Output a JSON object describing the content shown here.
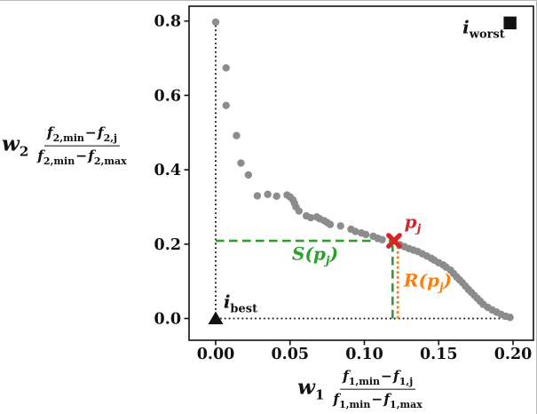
{
  "figure": {
    "background": "#ffffff",
    "accent_colors": {
      "gray_points": "#8c8c8c",
      "green": "#2ca02c",
      "orange": "#ff7f0e",
      "red": "#d62728",
      "black": "#111111"
    }
  },
  "chart_data": {
    "type": "scatter",
    "title": "",
    "legend": null,
    "grid": false,
    "xlim": [
      -0.018,
      0.214
    ],
    "ylim": [
      -0.058,
      0.84
    ],
    "x_ticks": {
      "values": [
        0,
        0.05,
        0.1,
        0.15,
        0.2
      ],
      "labels": [
        "0.00",
        "0.05",
        "0.10",
        "0.15",
        "0.20"
      ]
    },
    "y_ticks": {
      "values": [
        0,
        0.2,
        0.4,
        0.6,
        0.8
      ],
      "labels": [
        "0.0",
        "0.2",
        "0.4",
        "0.6",
        "0.8"
      ]
    },
    "xlabel": {
      "var": [
        "w",
        "1"
      ],
      "num": [
        [
          "f",
          "1,min"
        ],
        [
          "−",
          ""
        ],
        [
          "f",
          "1,j"
        ]
      ],
      "den": [
        [
          "f",
          "1,min"
        ],
        [
          "−",
          ""
        ],
        [
          "f",
          "1,max"
        ]
      ]
    },
    "ylabel": {
      "var": [
        "w",
        "2"
      ],
      "num": [
        [
          "f",
          "2,min"
        ],
        [
          "−",
          ""
        ],
        [
          "f",
          "2,j"
        ]
      ],
      "den": [
        [
          "f",
          "2,min"
        ],
        [
          "−",
          ""
        ],
        [
          "f",
          "2,max"
        ]
      ]
    },
    "series": [
      {
        "name": "pareto-front-points",
        "marker": "circle",
        "color": "#8c8c8c",
        "points": [
          [
            0.0,
            0.797
          ],
          [
            0.007,
            0.674
          ],
          [
            0.007,
            0.573
          ],
          [
            0.014,
            0.492
          ],
          [
            0.017,
            0.418
          ],
          [
            0.022,
            0.386
          ],
          [
            0.028,
            0.33
          ],
          [
            0.035,
            0.334
          ],
          [
            0.041,
            0.329
          ],
          [
            0.048,
            0.332
          ],
          [
            0.05,
            0.327
          ],
          [
            0.052,
            0.319
          ],
          [
            0.053,
            0.31
          ],
          [
            0.054,
            0.3
          ],
          [
            0.056,
            0.289
          ],
          [
            0.061,
            0.276
          ],
          [
            0.064,
            0.271
          ],
          [
            0.068,
            0.273
          ],
          [
            0.07,
            0.268
          ],
          [
            0.073,
            0.263
          ],
          [
            0.075,
            0.258
          ],
          [
            0.077,
            0.253
          ],
          [
            0.084,
            0.249
          ],
          [
            0.091,
            0.24
          ],
          [
            0.094,
            0.234
          ],
          [
            0.098,
            0.23
          ],
          [
            0.101,
            0.226
          ],
          [
            0.106,
            0.221
          ],
          [
            0.109,
            0.216
          ],
          [
            0.112,
            0.212
          ],
          [
            0.124,
            0.198
          ],
          [
            0.127,
            0.193
          ],
          [
            0.13,
            0.188
          ],
          [
            0.133,
            0.184
          ],
          [
            0.136,
            0.18
          ],
          [
            0.139,
            0.174
          ],
          [
            0.142,
            0.168
          ],
          [
            0.145,
            0.162
          ],
          [
            0.147,
            0.157
          ],
          [
            0.15,
            0.15
          ],
          [
            0.153,
            0.144
          ],
          [
            0.155,
            0.138
          ],
          [
            0.158,
            0.13
          ],
          [
            0.16,
            0.121
          ],
          [
            0.162,
            0.112
          ],
          [
            0.164,
            0.104
          ],
          [
            0.166,
            0.096
          ],
          [
            0.168,
            0.087
          ],
          [
            0.17,
            0.078
          ],
          [
            0.172,
            0.07
          ],
          [
            0.174,
            0.062
          ],
          [
            0.176,
            0.054
          ],
          [
            0.178,
            0.046
          ],
          [
            0.18,
            0.038
          ],
          [
            0.183,
            0.03
          ],
          [
            0.186,
            0.023
          ],
          [
            0.189,
            0.017
          ],
          [
            0.192,
            0.011
          ],
          [
            0.195,
            0.006
          ],
          [
            0.198,
            0.003
          ]
        ]
      }
    ],
    "markers": [
      {
        "name": "i-best-marker",
        "shape": "triangle-up",
        "color": "#111111",
        "point": [
          0.0,
          0.0
        ]
      },
      {
        "name": "i-worst-marker",
        "shape": "square",
        "color": "#111111",
        "point": [
          0.198,
          0.795
        ]
      },
      {
        "name": "p-j-marker",
        "shape": "x-bold",
        "color": "#d62728",
        "point": [
          0.12,
          0.209
        ]
      }
    ],
    "lines": [
      {
        "name": "origin-vline",
        "color": "#111111",
        "dash": "dot",
        "from": [
          0.0,
          0.0
        ],
        "to": [
          0.0,
          0.797
        ]
      },
      {
        "name": "baseline-hline",
        "color": "#111111",
        "dash": "dot",
        "from": [
          0.0,
          0.0
        ],
        "to": [
          0.2,
          0.0
        ]
      },
      {
        "name": "s-hline",
        "color": "#2ca02c",
        "dash": "dash",
        "from": [
          0.0,
          0.209
        ],
        "to": [
          0.119,
          0.209
        ]
      },
      {
        "name": "s-vline",
        "color": "#2ca02c",
        "dash": "dash",
        "from": [
          0.119,
          0.0
        ],
        "to": [
          0.119,
          0.196
        ]
      },
      {
        "name": "r-vline",
        "color": "#ff7f0e",
        "dash": "dense-dot",
        "from": [
          0.1225,
          0.0
        ],
        "to": [
          0.1225,
          0.193
        ]
      }
    ],
    "annotations": [
      {
        "name": "p-j-label",
        "pre": "",
        "main": "p",
        "sub": "j",
        "post": "",
        "color": "#d62728",
        "anchor": [
          0.1325,
          0.2545
        ]
      },
      {
        "name": "s-pj-label",
        "pre": "S(",
        "main": "p",
        "sub": "j",
        "post": ")",
        "color": "#2ca02c",
        "anchor": [
          0.0669,
          0.168
        ]
      },
      {
        "name": "r-pj-label",
        "pre": "R(",
        "main": "p",
        "sub": "j",
        "post": ")",
        "color": "#ff7f0e",
        "anchor": [
          0.1427,
          0.0968
        ]
      },
      {
        "name": "i-best-label",
        "pre": "",
        "main": "i",
        "sub": "best",
        "post": "",
        "color": "#111111",
        "anchor": [
          0.0167,
          0.0394
        ]
      },
      {
        "name": "i-worst-label",
        "pre": "",
        "main": "i",
        "sub": "worst",
        "post": "",
        "color": "#111111",
        "anchor": [
          0.1803,
          0.7778
        ]
      }
    ]
  }
}
